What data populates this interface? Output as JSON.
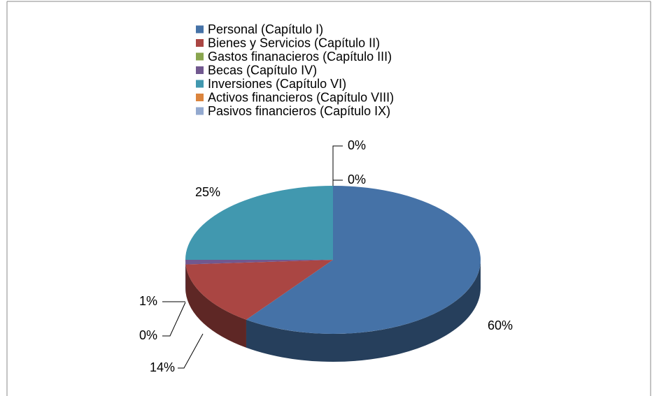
{
  "chart_data": {
    "type": "pie3d",
    "categories": [
      "Personal (Capítulo I)",
      "Bienes y Servicios (Capítulo II)",
      "Gastos finanacieros (Capítulo III)",
      "Becas (Capítulo IV)",
      "Inversiones (Capítulo VI)",
      "Activos financieros (Capítulo VIII)",
      "Pasivos financieros (Capítulo IX)"
    ],
    "values": [
      60,
      14,
      0,
      1,
      25,
      0,
      0
    ],
    "value_labels": [
      "60%",
      "14%",
      "0%",
      "1%",
      "25%",
      "0%",
      "0%"
    ],
    "colors": [
      "#4572a7",
      "#aa4643",
      "#89a54e",
      "#71588f",
      "#4198af",
      "#db843d",
      "#93a9cf"
    ],
    "legend": "top"
  }
}
